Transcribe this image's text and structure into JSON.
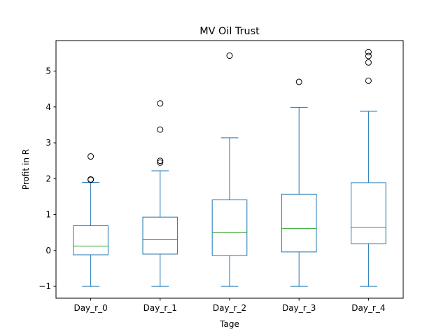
{
  "chart_data": {
    "type": "boxplot",
    "title": "MV Oil Trust",
    "xlabel": "Tage",
    "ylabel": "Profit in R",
    "ylim": [
      -1.33,
      5.85
    ],
    "yticks": [
      -1,
      0,
      1,
      2,
      3,
      4,
      5
    ],
    "grid": false,
    "box_color": "#1f77b4",
    "median_color": "#2ca02c",
    "flier_color": "#000000",
    "categories": [
      "Day_r_0",
      "Day_r_1",
      "Day_r_2",
      "Day_r_3",
      "Day_r_4"
    ],
    "boxes": [
      {
        "whisker_low": -1.0,
        "q1": -0.12,
        "median": 0.12,
        "q3": 0.69,
        "whisker_high": 1.9,
        "fliers": [
          1.97,
          1.98,
          2.62
        ]
      },
      {
        "whisker_low": -1.0,
        "q1": -0.1,
        "median": 0.3,
        "q3": 0.93,
        "whisker_high": 2.22,
        "fliers": [
          2.45,
          2.5,
          3.37,
          4.1
        ]
      },
      {
        "whisker_low": -1.0,
        "q1": -0.14,
        "median": 0.5,
        "q3": 1.41,
        "whisker_high": 3.14,
        "fliers": [
          5.43
        ]
      },
      {
        "whisker_low": -1.0,
        "q1": -0.04,
        "median": 0.61,
        "q3": 1.57,
        "whisker_high": 3.99,
        "fliers": [
          4.7
        ]
      },
      {
        "whisker_low": -1.0,
        "q1": 0.19,
        "median": 0.65,
        "q3": 1.89,
        "whisker_high": 3.88,
        "fliers": [
          4.73,
          5.24,
          5.42,
          5.53
        ]
      }
    ]
  }
}
